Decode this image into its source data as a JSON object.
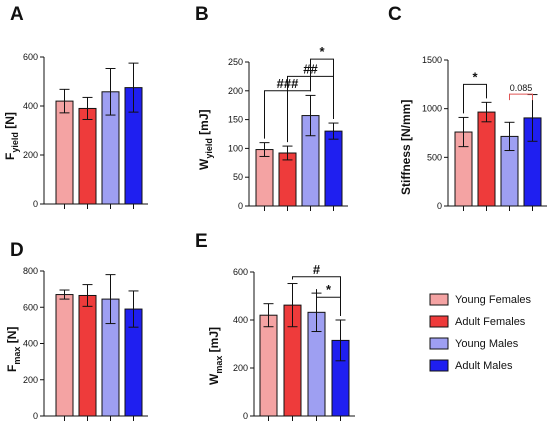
{
  "legend": [
    {
      "name": "Young Females",
      "color": "#f4a3a3"
    },
    {
      "name": "Adult Females",
      "color": "#ee3b3b"
    },
    {
      "name": "Young Males",
      "color": "#9e9ff2"
    },
    {
      "name": "Adult Males",
      "color": "#1f1ff0"
    }
  ],
  "chart_data": [
    {
      "type": "bar",
      "panel": "A",
      "ylabel_main": "F",
      "ylabel_sub": "yield",
      "ylabel_unit": " [N]",
      "categories": [
        "Young Females",
        "Adult Females",
        "Young Males",
        "Adult Males"
      ],
      "values": [
        420,
        390,
        458,
        475
      ],
      "errors": [
        48,
        45,
        95,
        100
      ],
      "ylim": [
        0,
        600
      ],
      "yticks": [
        0,
        200,
        400,
        600
      ],
      "annotations": []
    },
    {
      "type": "bar",
      "panel": "B",
      "ylabel_main": "W",
      "ylabel_sub": "yield",
      "ylabel_unit": " [mJ]",
      "categories": [
        "Young Females",
        "Adult Females",
        "Young Males",
        "Adult Males"
      ],
      "values": [
        98,
        92,
        157,
        130
      ],
      "errors": [
        12,
        12,
        35,
        14
      ],
      "ylim": [
        0,
        250
      ],
      "yticks": [
        0,
        50,
        100,
        150,
        200,
        250
      ],
      "annotations": [
        {
          "text": "###",
          "from": 0,
          "to": 2,
          "level": 200
        },
        {
          "text": "##",
          "from": 1,
          "to": 3,
          "level": 225
        },
        {
          "text": "*",
          "from": 2,
          "to": 3,
          "level": 255
        }
      ]
    },
    {
      "type": "bar",
      "panel": "C",
      "ylabel_main": "Stiffness [N/mm]",
      "ylabel_sub": "",
      "ylabel_unit": "",
      "categories": [
        "Young Females",
        "Adult Females",
        "Young Males",
        "Adult Males"
      ],
      "values": [
        760,
        965,
        715,
        905
      ],
      "errors": [
        150,
        100,
        145,
        240
      ],
      "ylim": [
        0,
        1500
      ],
      "yticks": [
        0,
        500,
        1000,
        1500
      ],
      "annotations": [
        {
          "text": "*",
          "from": 0,
          "to": 1,
          "level": 1250
        },
        {
          "text": "0.085",
          "from": 2,
          "to": 3,
          "level": 1150
        }
      ]
    },
    {
      "type": "bar",
      "panel": "D",
      "ylabel_main": "F",
      "ylabel_sub": "max",
      "ylabel_unit": " [N]",
      "categories": [
        "Young Females",
        "Adult Females",
        "Young Males",
        "Adult Males"
      ],
      "values": [
        670,
        665,
        645,
        590
      ],
      "errors": [
        25,
        60,
        135,
        100
      ],
      "ylim": [
        0,
        800
      ],
      "yticks": [
        0,
        200,
        400,
        600,
        800
      ],
      "annotations": []
    },
    {
      "type": "bar",
      "panel": "E",
      "ylabel_main": "W",
      "ylabel_sub": "max",
      "ylabel_unit": " [mJ]",
      "categories": [
        "Young Females",
        "Adult Females",
        "Young Males",
        "Adult Males"
      ],
      "values": [
        420,
        462,
        432,
        315
      ],
      "errors": [
        48,
        90,
        80,
        85
      ],
      "ylim": [
        0,
        600
      ],
      "yticks": [
        0,
        200,
        400,
        600
      ],
      "annotations": [
        {
          "text": "#",
          "from": 1,
          "to": 3,
          "level": 580
        },
        {
          "text": "*",
          "from": 2,
          "to": 3,
          "level": 495
        }
      ]
    }
  ]
}
